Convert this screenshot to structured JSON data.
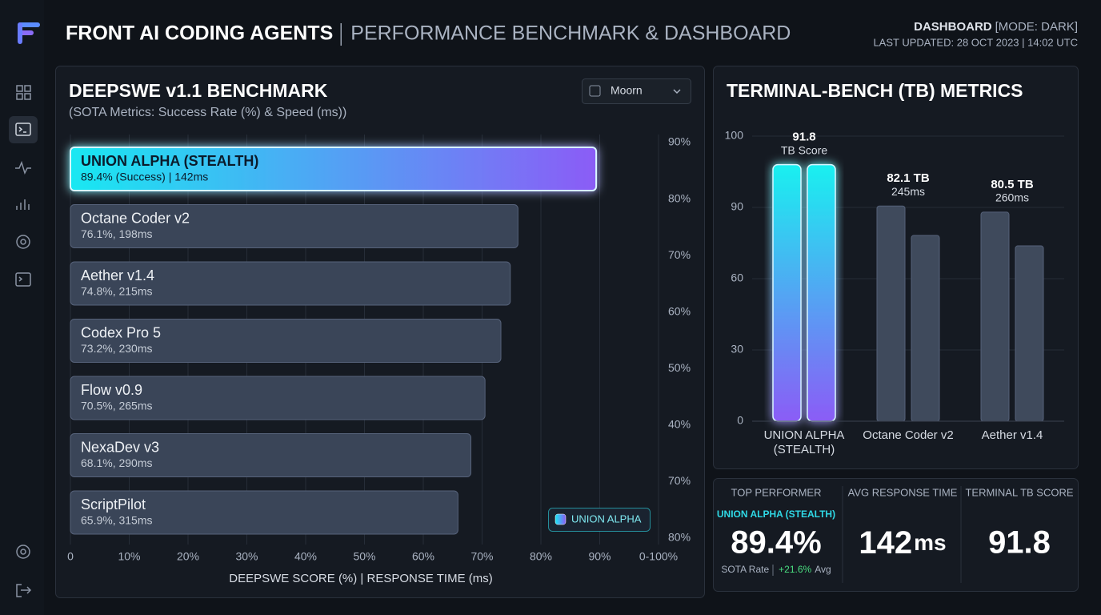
{
  "header": {
    "title": "FRONT AI CODING AGENTS",
    "subtitle": "PERFORMANCE BENCHMARK & DASHBOARD",
    "mode": "DASHBOARD",
    "mode_detail": "[MODE: DARK]",
    "updated": "LAST UPDATED: 28 OCT 2023 | 14:02 UTC"
  },
  "dropdown": "Moorn",
  "chart_data": [
    {
      "type": "bar",
      "orientation": "horizontal",
      "title": "DEEPSWE v1.1 BENCHMARK",
      "subtitle": "(SOTA Metrics: Success Rate (%) & Speed (ms))",
      "categories": [
        "UNION ALPHA (STEALTH)",
        "Octane Coder v2",
        "Aether v1.4",
        "Codex Pro 5",
        "Flow v0.9",
        "NexaDev v3",
        "ScriptPilot"
      ],
      "values": [
        89.4,
        76.1,
        74.8,
        73.2,
        70.5,
        68.1,
        65.9
      ],
      "value_labels": [
        "89.4% (Success) | 142ms",
        "76.1%, 198ms",
        "74.8%, 215ms",
        "73.2%, 230ms",
        "70.5%, 265ms",
        "68.1%, 290ms",
        "65.9%, 315ms"
      ],
      "color": "#3a4558",
      "highlight": 0,
      "highlight_color": [
        "#19e8f2",
        "#8b5cf6"
      ],
      "xlim": [
        0,
        100
      ],
      "xticks": [
        0,
        {
          "value": 10,
          "label": "10%"
        },
        {
          "value": 20,
          "label": "20%"
        },
        {
          "value": 30,
          "label": "30%"
        },
        {
          "value": 40,
          "label": "40%"
        },
        {
          "value": 50,
          "label": "50%"
        },
        {
          "value": 60,
          "label": "60%"
        },
        {
          "value": 70,
          "label": "70%"
        },
        {
          "value": 80,
          "label": "80%"
        },
        {
          "value": 90,
          "label": "90%"
        },
        {
          "value": 100,
          "label": "0-100%"
        }
      ],
      "right_labels": [
        "90%",
        "80%",
        "70%",
        "60%",
        "50%",
        "40%",
        "70%",
        "80%"
      ],
      "x_label": "DEEPSWE SCORE (%) | RESPONSE TIME (ms)",
      "grid": true,
      "legend": "UNION ALPHA",
      "legend_position": "lower right"
    },
    {
      "type": "grouped_bar",
      "title": "TERMINAL-BENCH (TB) METRICS",
      "categories": [
        "UNION ALPHA (STEALTH)",
        "Octane Coder v2",
        "Aether v1.4"
      ],
      "series": [
        {
          "values": [
            96,
            90.2,
            88
          ]
        },
        {
          "values": [
            96,
            78.2,
            73.8
          ]
        }
      ],
      "color": "#3f4a5c",
      "highlight": 0,
      "highlight_color": [
        "#19f0f0",
        "#8b5cf6"
      ],
      "ylim": [
        0,
        100
      ],
      "yticks": [
        0,
        30,
        60,
        90,
        100
      ],
      "grid": true,
      "annotations": [
        {
          "label": "91.8",
          "text": "TB Score"
        },
        {
          "label": "82.1 TB",
          "text": "245ms"
        },
        {
          "label": "80.5 TB",
          "text": "260ms"
        }
      ]
    }
  ],
  "stats": [
    {
      "label": "TOP PERFORMER",
      "sub": "UNION ALPHA (STEALTH)",
      "value": "89.4%",
      "note": "SOTA Rate",
      "delta": "+21.6%",
      "delta_note": "Avg"
    },
    {
      "label": "AVG RESPONSE TIME",
      "value": "142",
      "unit": "ms"
    },
    {
      "label": "TERMINAL TB SCORE",
      "value": "91.8"
    }
  ]
}
